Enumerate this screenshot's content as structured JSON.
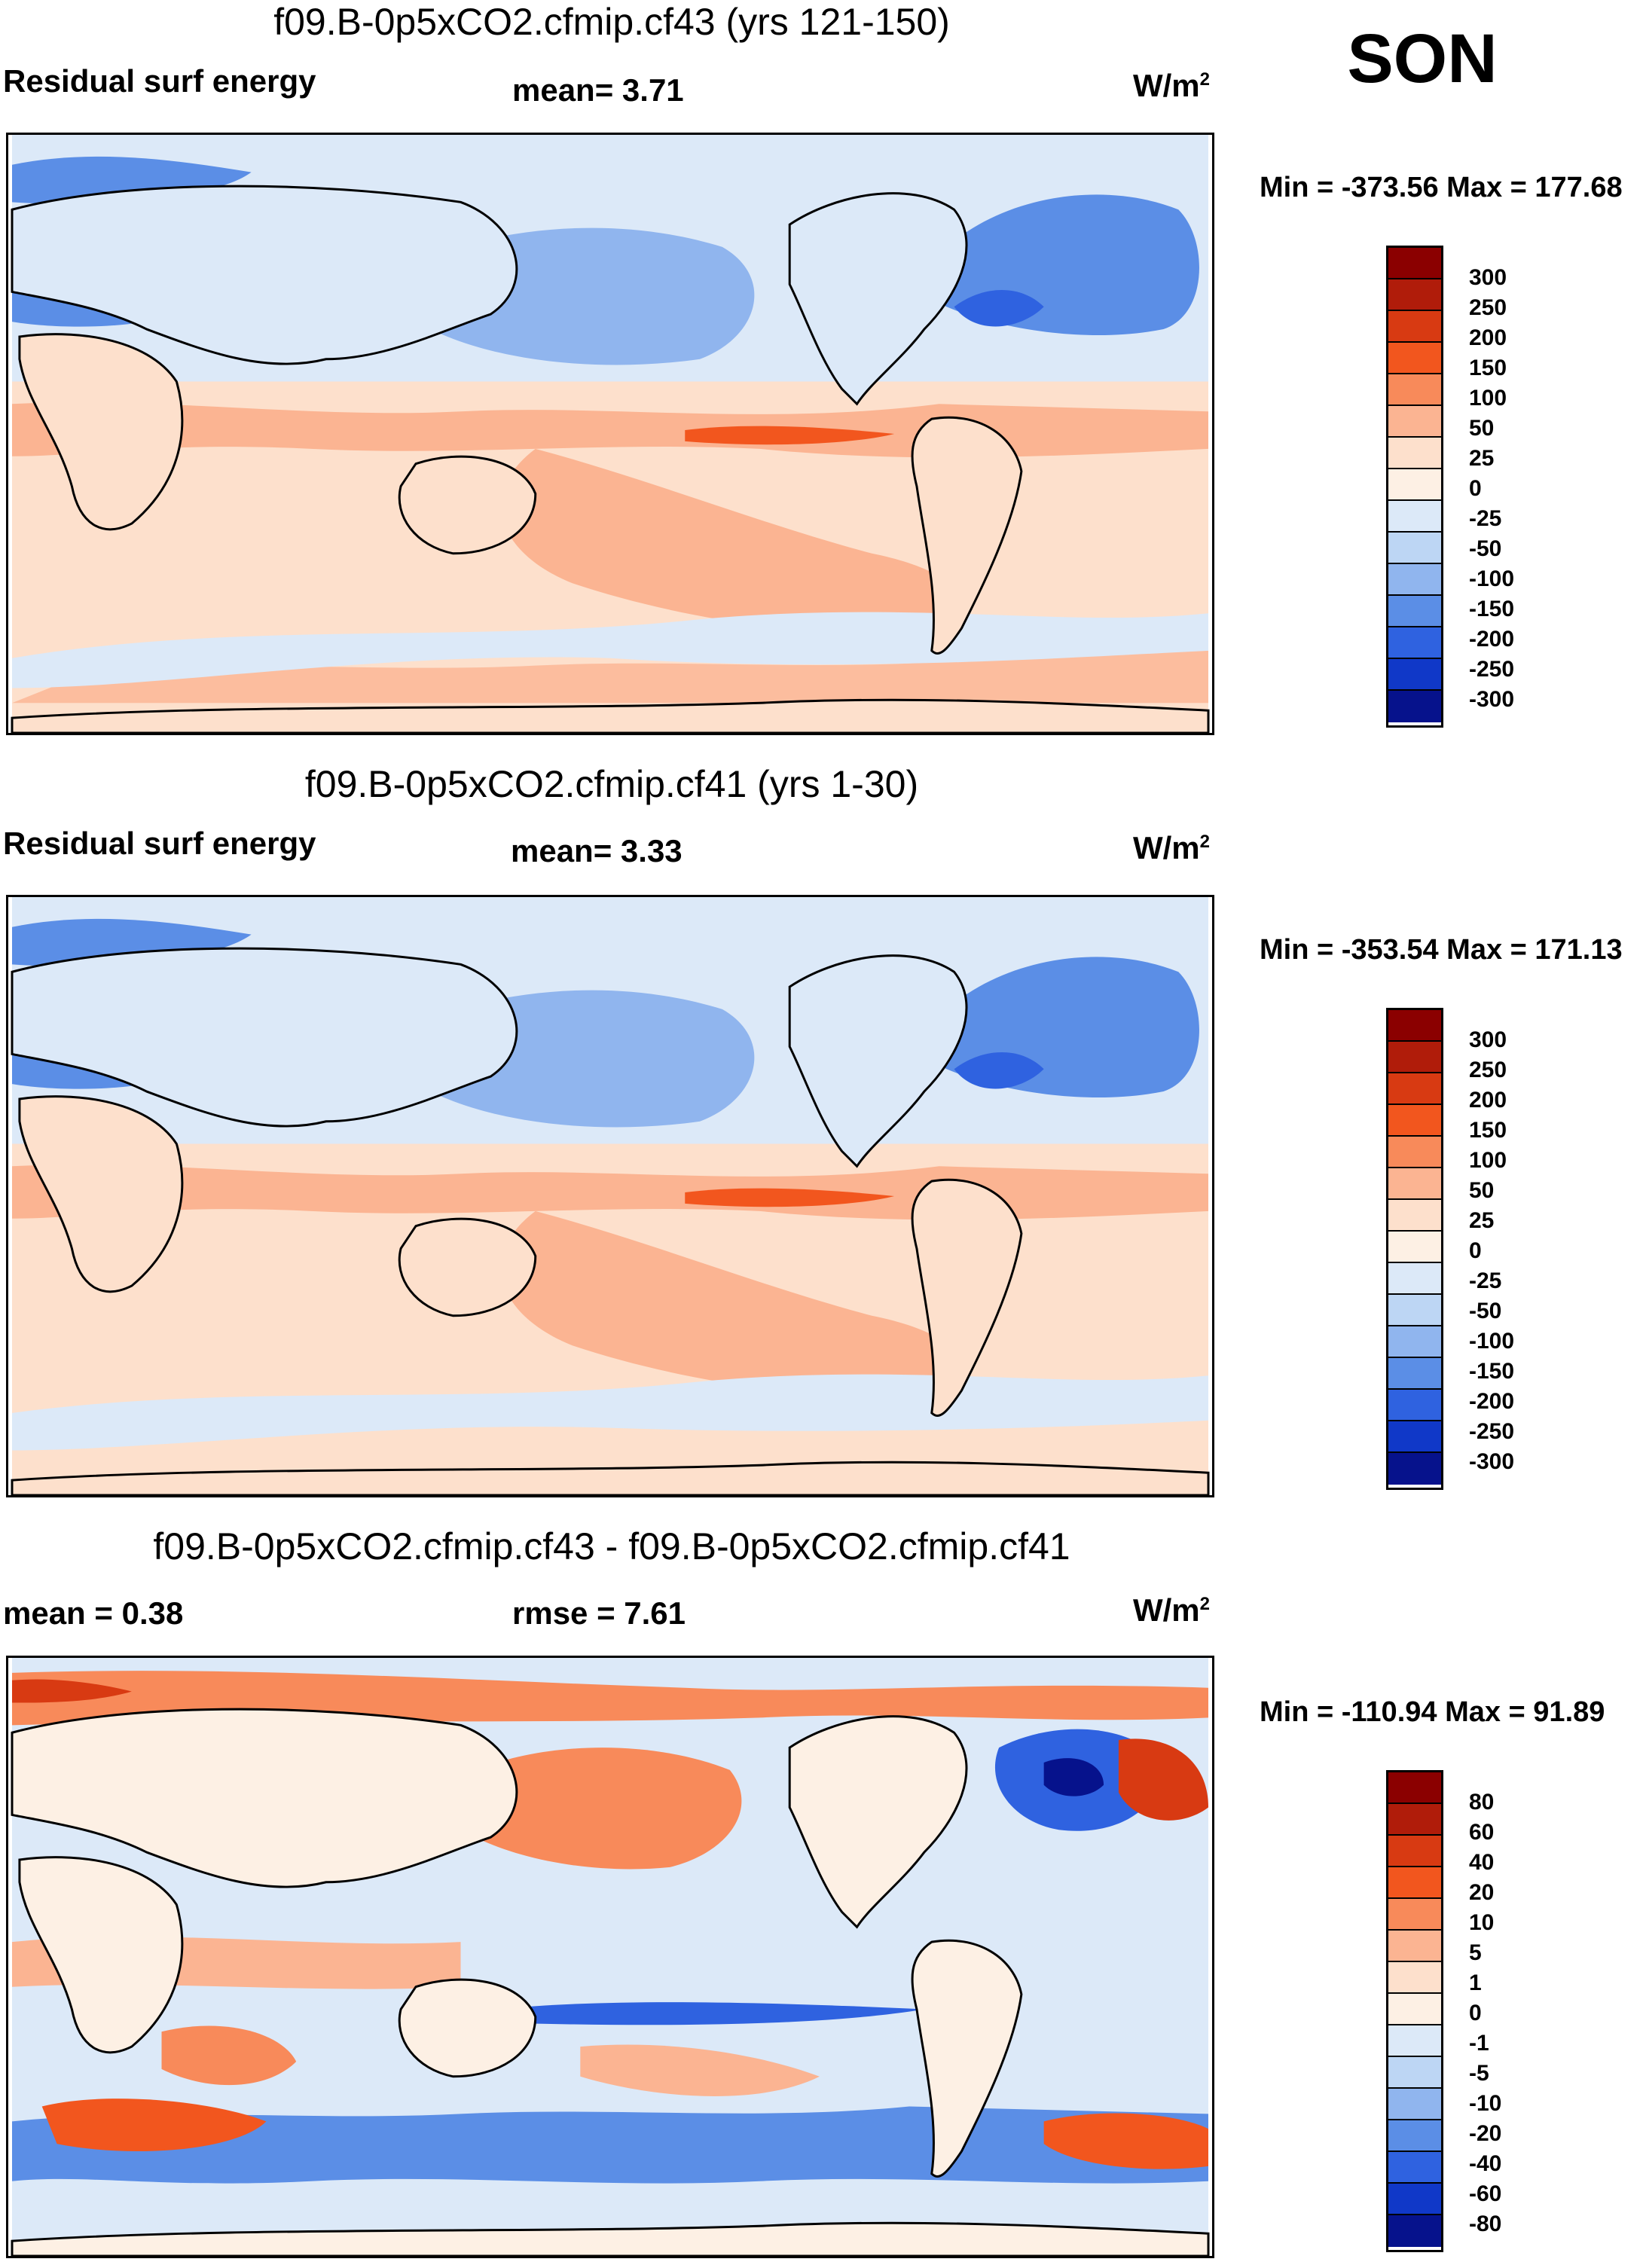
{
  "season": "SON",
  "panels": [
    {
      "title": "f09.B-0p5xCO2.cfmip.cf43 (yrs 121-150)",
      "left_label": "Residual surf energy",
      "stat_text": "mean=   3.71",
      "units": "W/m",
      "units_sup": "2",
      "minmax": "Min = -373.56 Max = 177.68",
      "levels": [
        "300",
        "250",
        "200",
        "150",
        "100",
        "50",
        "25",
        "0",
        "-25",
        "-50",
        "-100",
        "-150",
        "-200",
        "-250",
        "-300"
      ]
    },
    {
      "title": "f09.B-0p5xCO2.cfmip.cf41 (yrs 1-30)",
      "left_label": "Residual surf energy",
      "stat_text": "mean=   3.33",
      "units": "W/m",
      "units_sup": "2",
      "minmax": "Min = -353.54 Max = 171.13",
      "levels": [
        "300",
        "250",
        "200",
        "150",
        "100",
        "50",
        "25",
        "0",
        "-25",
        "-50",
        "-100",
        "-150",
        "-200",
        "-250",
        "-300"
      ]
    },
    {
      "title": "f09.B-0p5xCO2.cfmip.cf43 - f09.B-0p5xCO2.cfmip.cf41",
      "left_label": "mean =   0.38",
      "stat_text": "rmse =   7.61",
      "units": "W/m",
      "units_sup": "2",
      "minmax": "Min = -110.94 Max =  91.89",
      "levels": [
        "80",
        "60",
        "40",
        "20",
        "10",
        "5",
        "1",
        "0",
        "-1",
        "-5",
        "-10",
        "-20",
        "-40",
        "-60",
        "-80"
      ]
    }
  ],
  "colorbar_colors": [
    "#8b0000",
    "#b01c0a",
    "#d83a12",
    "#f2561e",
    "#f88a5a",
    "#fbb492",
    "#fde0cc",
    "#fdf0e4",
    "#dce9f8",
    "#bdd6f4",
    "#90b5ee",
    "#5b8ee6",
    "#2f62e0",
    "#1038c8",
    "#06128c"
  ],
  "colorbar_colors_diff": [
    "#8b0000",
    "#b01c0a",
    "#d83a12",
    "#f2561e",
    "#f88a5a",
    "#fbb492",
    "#fde0cc",
    "#fdf0e4",
    "#dce9f8",
    "#bdd6f4",
    "#90b5ee",
    "#5b8ee6",
    "#2f62e0",
    "#1038c8",
    "#06128c"
  ]
}
